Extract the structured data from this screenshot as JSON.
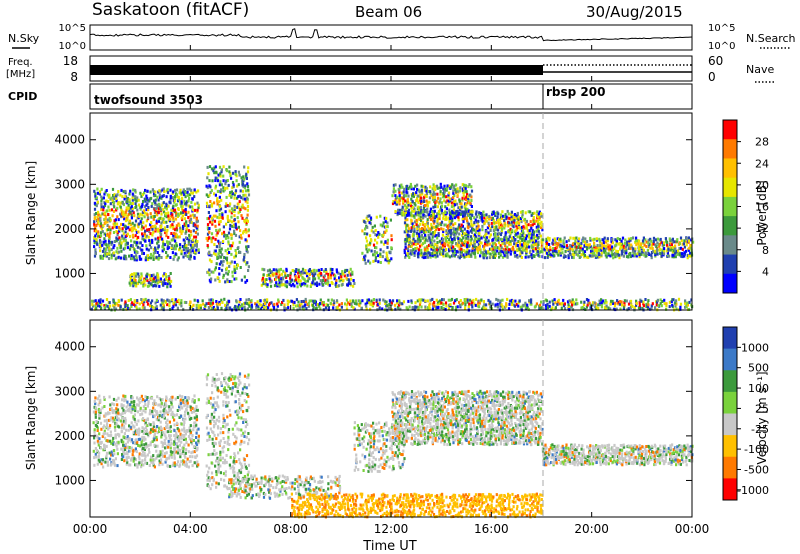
{
  "header": {
    "radar": "Saskatoon (fitACF)",
    "beam": "Beam 06",
    "date": "30/Aug/2015"
  },
  "noise_panel": {
    "left_label": "N.Sky",
    "left_ticks": [
      "10^5",
      "10^0"
    ],
    "right_label": "N.Search",
    "right_ticks": [
      "10^5",
      "10^0"
    ]
  },
  "freq_panel": {
    "left_label_line1": "Freq.",
    "left_label_line2": "[MHz]",
    "left_ticks": [
      "18",
      "8"
    ],
    "right_label": "Nave",
    "right_ticks": [
      "60",
      "0"
    ]
  },
  "cpid_panel": {
    "label": "CPID",
    "entries": [
      {
        "name": "twofsound 3503",
        "start": "00:00"
      },
      {
        "name": "rbsp 200",
        "start": "18:00"
      }
    ]
  },
  "x_axis": {
    "label": "Time UT",
    "ticks": [
      "00:00",
      "04:00",
      "08:00",
      "12:00",
      "16:00",
      "20:00",
      "00:00"
    ],
    "tick_hours": [
      0,
      4,
      8,
      12,
      16,
      20,
      24
    ]
  },
  "chart_data": [
    {
      "type": "heatmap",
      "name": "power-panel",
      "ylabel": "Slant Range [km]",
      "yticks": [
        1000,
        2000,
        3000,
        4000
      ],
      "ylim": [
        180,
        4600
      ],
      "xlim_hours": [
        0,
        24
      ],
      "colorbar_label": "Power [dB]",
      "colorbar_ticks": [
        "28",
        "24",
        "20",
        "16",
        "12",
        "8",
        "4"
      ],
      "colorbar_colors": [
        "#ff0000",
        "#ff7a00",
        "#ffc000",
        "#e6e600",
        "#7ad23c",
        "#3c9a3c",
        "#6a8a8a",
        "#2040b0",
        "#0000ff"
      ],
      "scatter_features": [
        {
          "t0": 0.1,
          "t1": 4.3,
          "r0": 1300,
          "r1": 2900,
          "density": 0.55
        },
        {
          "t0": 1.5,
          "t1": 3.2,
          "r0": 700,
          "r1": 1000,
          "density": 0.8
        },
        {
          "t0": 4.6,
          "t1": 6.3,
          "r0": 800,
          "r1": 3400,
          "density": 0.35
        },
        {
          "t0": 6.8,
          "t1": 10.5,
          "r0": 700,
          "r1": 1100,
          "density": 0.6
        },
        {
          "t0": 10.8,
          "t1": 12.0,
          "r0": 1200,
          "r1": 2300,
          "density": 0.4
        },
        {
          "t0": 12.0,
          "t1": 15.2,
          "r0": 2300,
          "r1": 3000,
          "density": 0.55
        },
        {
          "t0": 12.5,
          "t1": 18.0,
          "r0": 1800,
          "r1": 2400,
          "density": 0.7
        },
        {
          "t0": 12.5,
          "t1": 24.0,
          "r0": 1350,
          "r1": 1800,
          "density": 0.75
        },
        {
          "t0": 0.0,
          "t1": 24.0,
          "r0": 180,
          "r1": 420,
          "density": 0.6
        }
      ]
    },
    {
      "type": "heatmap",
      "name": "velocity-panel",
      "ylabel": "Slant Range [km]",
      "yticks": [
        1000,
        2000,
        3000,
        4000
      ],
      "ylim": [
        180,
        4600
      ],
      "xlim_hours": [
        0,
        24
      ],
      "colorbar_label": "Velocity [m s⁻¹]",
      "colorbar_ticks": [
        "1000",
        "500",
        "100",
        "25",
        "-25",
        "-100",
        "-500",
        "-1000"
      ],
      "colorbar_colors": [
        "#2040b0",
        "#3c7ac8",
        "#3c9a3c",
        "#7ad23c",
        "#c8c8c8",
        "#ffc000",
        "#ff7a00",
        "#ff0000"
      ],
      "scatter_features": [
        {
          "t0": 0.1,
          "t1": 4.3,
          "r0": 1300,
          "r1": 2900,
          "density": 0.45
        },
        {
          "t0": 4.6,
          "t1": 6.3,
          "r0": 800,
          "r1": 3400,
          "density": 0.3
        },
        {
          "t0": 5.5,
          "t1": 10.0,
          "r0": 600,
          "r1": 1100,
          "density": 0.45
        },
        {
          "t0": 10.5,
          "t1": 12.5,
          "r0": 1200,
          "r1": 2300,
          "density": 0.4
        },
        {
          "t0": 12.0,
          "t1": 18.0,
          "r0": 1800,
          "r1": 3000,
          "density": 0.7
        },
        {
          "t0": 18.0,
          "t1": 24.0,
          "r0": 1350,
          "r1": 1800,
          "density": 0.8
        },
        {
          "t0": 8.0,
          "t1": 18.0,
          "r0": 180,
          "r1": 700,
          "density": 0.55
        }
      ]
    }
  ]
}
